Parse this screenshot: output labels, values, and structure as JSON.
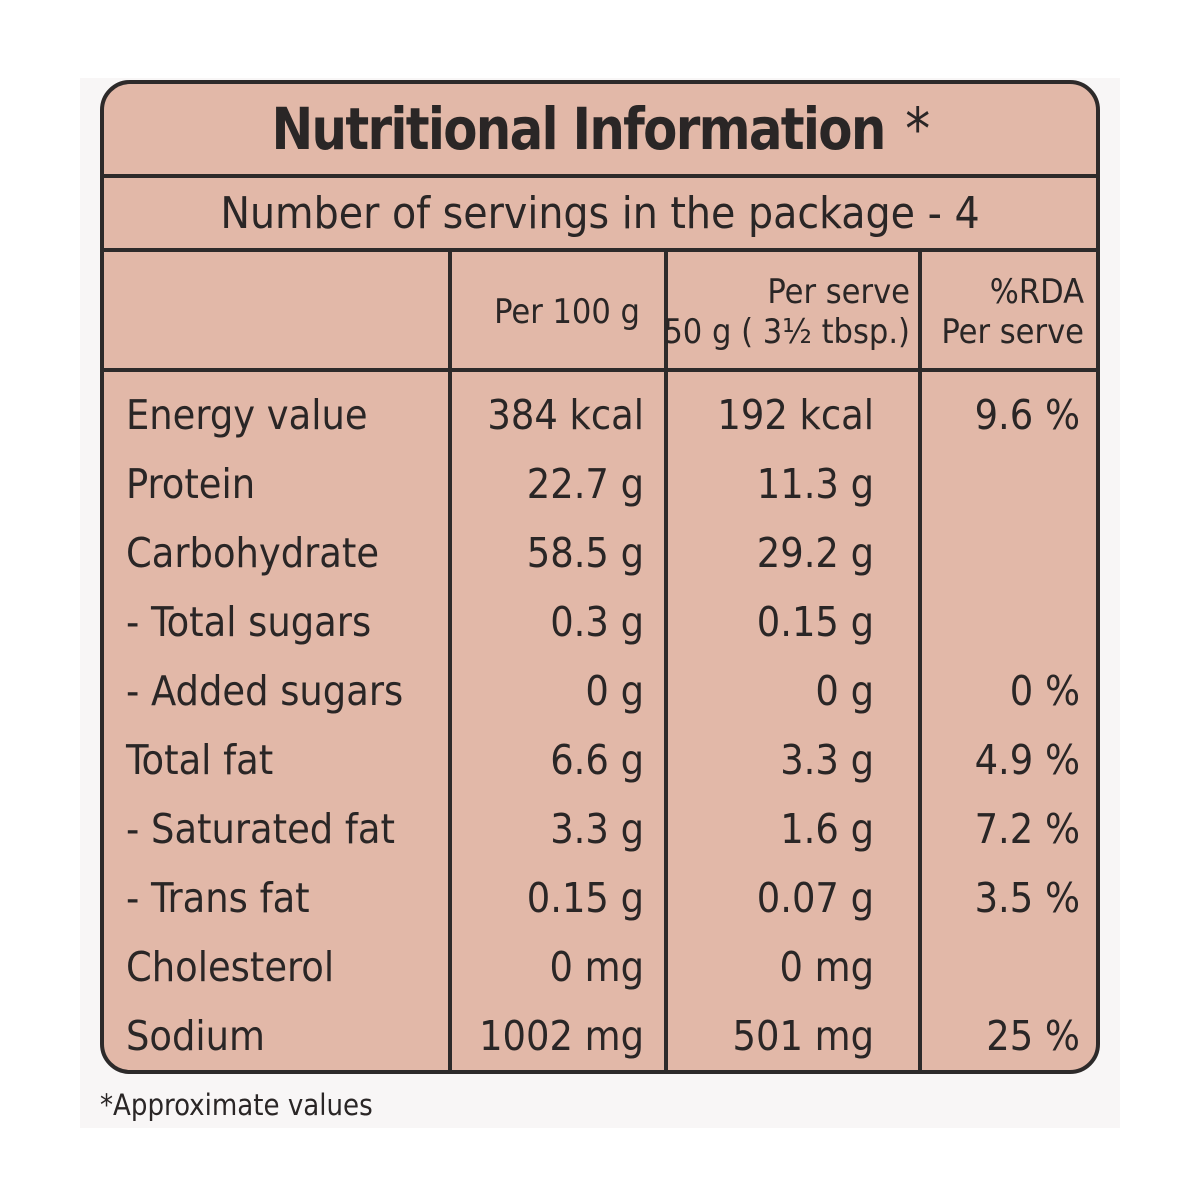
{
  "title": "Nutritional Information",
  "title_mark": "*",
  "servings_text": "Number of servings in the package - 4",
  "columns": {
    "per100": "Per 100 g",
    "perserve_line1": "Per serve",
    "perserve_line2": "50 g ( 3½ tbsp.)",
    "rda_line1": "%RDA",
    "rda_line2": "Per serve"
  },
  "rows": [
    {
      "label": "Energy value",
      "per100": "384 kcal",
      "perserve": "192 kcal",
      "rda": "9.6 %"
    },
    {
      "label": "Protein",
      "per100": "22.7 g",
      "perserve": "11.3 g",
      "rda": ""
    },
    {
      "label": "Carbohydrate",
      "per100": "58.5 g",
      "perserve": "29.2 g",
      "rda": ""
    },
    {
      "label": "- Total sugars",
      "per100": "0.3 g",
      "perserve": "0.15 g",
      "rda": ""
    },
    {
      "label": "- Added sugars",
      "per100": "0 g",
      "perserve": "0 g",
      "rda": "0 %"
    },
    {
      "label": "Total fat",
      "per100": "6.6 g",
      "perserve": "3.3 g",
      "rda": "4.9 %"
    },
    {
      "label": "- Saturated fat",
      "per100": "3.3 g",
      "perserve": "1.6 g",
      "rda": "7.2 %"
    },
    {
      "label": "- Trans fat",
      "per100": "0.15 g",
      "perserve": "0.07 g",
      "rda": "3.5 %"
    },
    {
      "label": "Cholesterol",
      "per100": "0 mg",
      "perserve": "0 mg",
      "rda": ""
    },
    {
      "label": "Sodium",
      "per100": "1002 mg",
      "perserve": "501 mg",
      "rda": "25 %"
    }
  ],
  "footnote": "*Approximate values",
  "colors": {
    "panel": "#e2b8a8",
    "border": "#2d2a2a",
    "text": "#2a2626"
  }
}
